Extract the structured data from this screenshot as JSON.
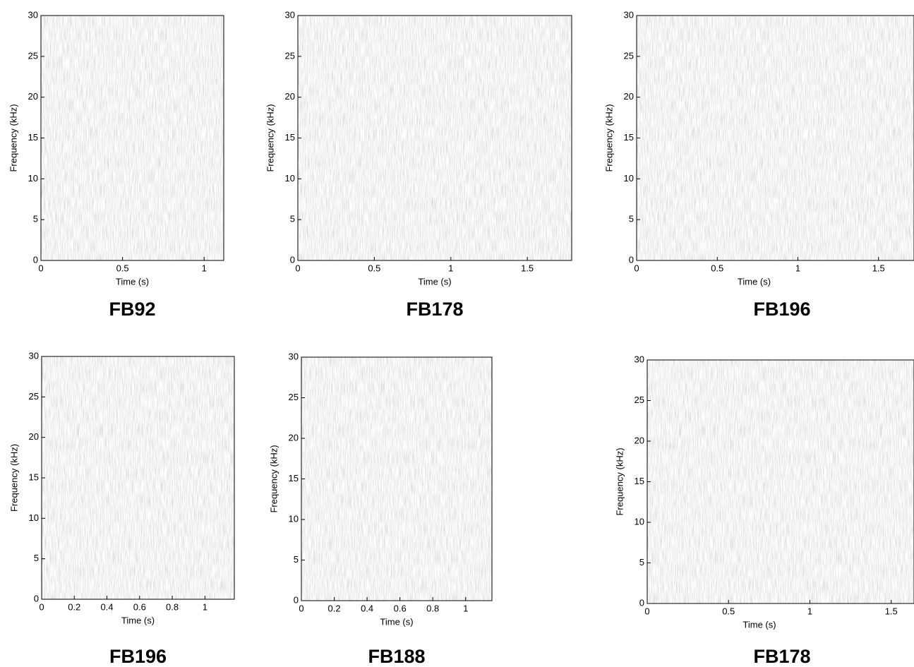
{
  "chart_data": [
    {
      "type": "spectrogram",
      "title": "FB92",
      "x_label": "Time (s)",
      "y_label": "Frequency (kHz)",
      "xlim": [
        0,
        1.12
      ],
      "xticks": [
        0,
        0.5,
        1
      ],
      "ylim": [
        0,
        30
      ],
      "yticks": [
        0,
        5,
        10,
        15,
        20,
        25,
        30
      ]
    },
    {
      "type": "spectrogram",
      "title": "FB178",
      "x_label": "Time (s)",
      "y_label": "Frequency (kHz)",
      "xlim": [
        0,
        1.79
      ],
      "xticks": [
        0,
        0.5,
        1,
        1.5
      ],
      "ylim": [
        0,
        30
      ],
      "yticks": [
        0,
        5,
        10,
        15,
        20,
        25,
        30
      ]
    },
    {
      "type": "spectrogram",
      "title": "FB196",
      "x_label": "Time (s)",
      "y_label": "Frequency (kHz)",
      "xlim": [
        0,
        1.72
      ],
      "xticks": [
        0,
        0.5,
        1,
        1.5
      ],
      "ylim": [
        0,
        30
      ],
      "yticks": [
        0,
        5,
        10,
        15,
        20,
        25,
        30
      ]
    },
    {
      "type": "spectrogram",
      "title": "FB196",
      "x_label": "Time (s)",
      "y_label": "Frequency (kHz)",
      "xlim": [
        0,
        1.18
      ],
      "xticks": [
        0,
        0.2,
        0.4,
        0.6,
        0.8,
        1
      ],
      "ylim": [
        0,
        30
      ],
      "yticks": [
        0,
        5,
        10,
        15,
        20,
        25,
        30
      ]
    },
    {
      "type": "spectrogram",
      "title": "FB188",
      "x_label": "Time (s)",
      "y_label": "Frequency (kHz)",
      "xlim": [
        0,
        1.16
      ],
      "xticks": [
        0,
        0.2,
        0.4,
        0.6,
        0.8,
        1
      ],
      "ylim": [
        0,
        30
      ],
      "yticks": [
        0,
        5,
        10,
        15,
        20,
        25,
        30
      ]
    },
    {
      "type": "spectrogram",
      "title": "FB178",
      "x_label": "Time (s)",
      "y_label": "Frequency (kHz)",
      "xlim": [
        0,
        1.64
      ],
      "xticks": [
        0,
        0.5,
        1,
        1.5
      ],
      "ylim": [
        0,
        30
      ],
      "yticks": [
        0,
        5,
        10,
        15,
        20,
        25,
        30
      ]
    }
  ]
}
